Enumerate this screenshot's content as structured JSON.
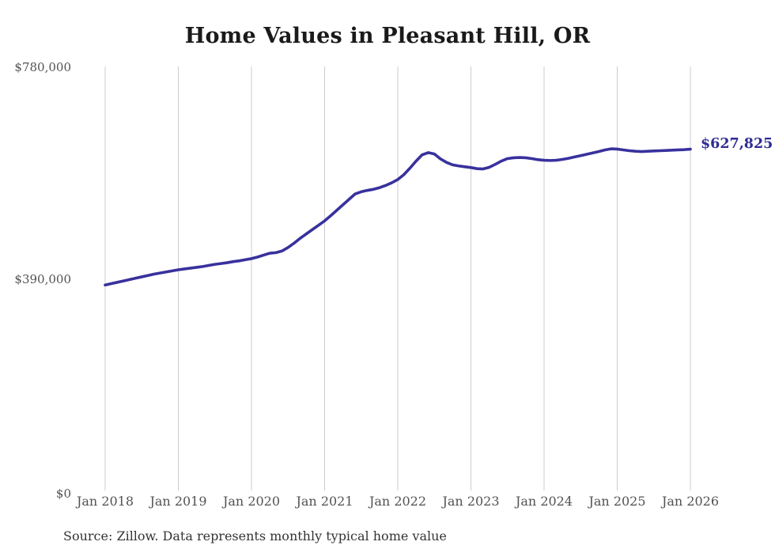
{
  "chart_data": {
    "type": "line",
    "title": "Home Values in Pleasant Hill, OR",
    "xlabel": "",
    "ylabel": "",
    "x_unit": "month",
    "x_range": [
      "Jan 2018",
      "Jan 2026"
    ],
    "x_tick_labels": [
      "Jan 2018",
      "Jan 2019",
      "Jan 2020",
      "Jan 2021",
      "Jan 2022",
      "Jan 2023",
      "Jan 2024",
      "Jan 2025",
      "Jan 2026"
    ],
    "y_ticks": [
      {
        "label": "$0",
        "value": 0
      },
      {
        "label": "$390,000",
        "value": 390000
      },
      {
        "label": "$780,000",
        "value": 780000
      }
    ],
    "ylim": [
      0,
      780000
    ],
    "grid": "vertical-gridlines-only",
    "legend_position": "none",
    "series": [
      {
        "name": "Monthly typical home value",
        "months_per_point": 1,
        "start": "Jan 2018",
        "values": [
          378000,
          380500,
          383000,
          385500,
          388000,
          390500,
          393000,
          395500,
          398000,
          400000,
          402000,
          404000,
          406000,
          407500,
          409000,
          410500,
          412000,
          414000,
          416000,
          417500,
          419000,
          421000,
          422500,
          424500,
          426500,
          429500,
          433000,
          436500,
          437500,
          440500,
          447000,
          455000,
          464000,
          472000,
          480000,
          488000,
          496000,
          505500,
          515500,
          525500,
          535500,
          545500,
          549500,
          552000,
          554000,
          557000,
          561000,
          566000,
          572000,
          581000,
          593000,
          606000,
          617500,
          621500,
          619000,
          610000,
          603500,
          599000,
          597000,
          595500,
          594000,
          592000,
          591500,
          594500,
          600000,
          606000,
          610500,
          612000,
          612500,
          612000,
          610500,
          608500,
          607500,
          607000,
          607500,
          609000,
          611000,
          613500,
          616000,
          618500,
          621000,
          623500,
          626500,
          628500,
          628000,
          626500,
          625000,
          624000,
          623500,
          624000,
          624500,
          625000,
          625500,
          626000,
          626500,
          627000,
          627825
        ]
      }
    ],
    "end_label": "$627,825",
    "end_value": 627825,
    "source_note": "Source: Zillow. Data represents monthly typical home value",
    "colors": {
      "line": "#39319d",
      "end_label_text": "#2f2b96",
      "axis_text": "#525252",
      "title_text": "#1a1a1a",
      "gridline": "#cccccc",
      "source_text": "#333333",
      "background": "#ffffff"
    }
  }
}
